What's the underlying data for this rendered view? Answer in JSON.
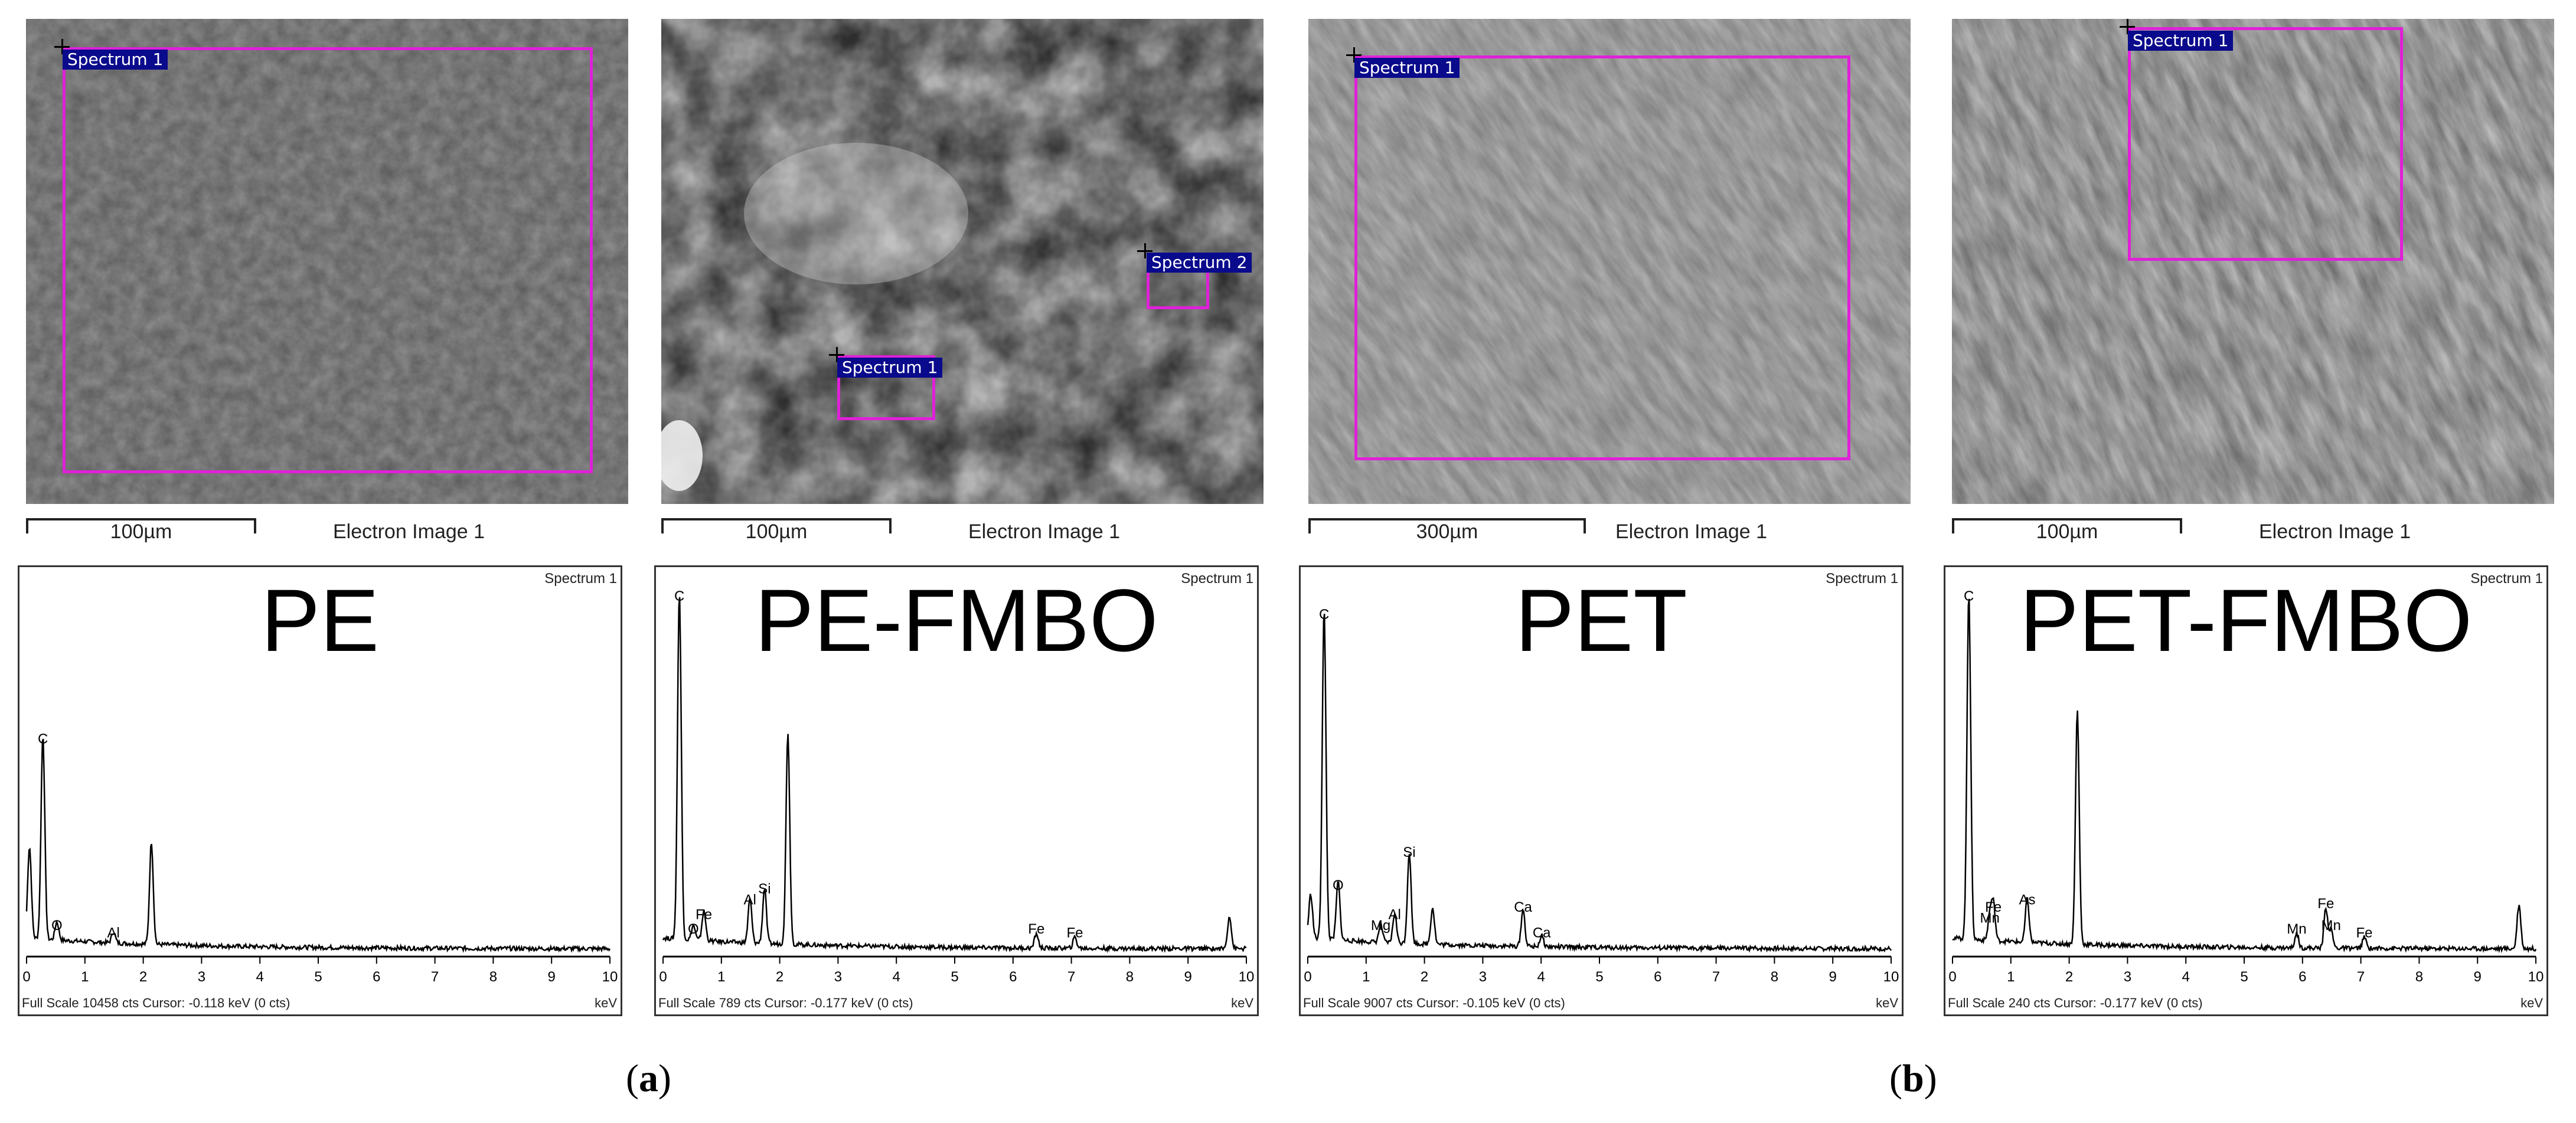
{
  "columns": [
    {
      "id": "pe",
      "spectrum_boxes": [
        {
          "label": "Spectrum 1"
        }
      ],
      "scale_label": "100µm",
      "image_label": "Electron Image 1",
      "spectrum_title": "PE",
      "spectrum_corner": "Spectrum 1",
      "footer": "Full Scale 10458 cts  Cursor: -0.118 keV (0 cts)",
      "unit": "keV",
      "peaks": [
        {
          "element": "C",
          "kev": 0.28,
          "height": 0.56
        },
        {
          "element": "O",
          "kev": 0.52,
          "height": 0.05
        },
        {
          "element": "Al",
          "kev": 1.49,
          "height": 0.03
        },
        {
          "element": "",
          "kev": 2.14,
          "height": 0.28
        },
        {
          "element": "",
          "kev": 0.05,
          "height": 0.25
        }
      ]
    },
    {
      "id": "pe-fmbo",
      "spectrum_boxes": [
        {
          "label": "Spectrum 2"
        },
        {
          "label": "Spectrum 1"
        }
      ],
      "scale_label": "100µm",
      "image_label": "Electron Image 1",
      "spectrum_title": "PE-FMBO",
      "spectrum_corner": "Spectrum 1",
      "footer": "Full Scale 789 cts  Cursor: -0.177 keV (0 cts)",
      "unit": "keV",
      "peaks": [
        {
          "element": "C",
          "kev": 0.28,
          "height": 0.95
        },
        {
          "element": "O",
          "kev": 0.52,
          "height": 0.04
        },
        {
          "element": "Fe",
          "kev": 0.7,
          "height": 0.08
        },
        {
          "element": "Al",
          "kev": 1.49,
          "height": 0.12
        },
        {
          "element": "Si",
          "kev": 1.74,
          "height": 0.15
        },
        {
          "element": "",
          "kev": 2.14,
          "height": 0.58
        },
        {
          "element": "Fe",
          "kev": 6.4,
          "height": 0.04
        },
        {
          "element": "Fe",
          "kev": 7.06,
          "height": 0.03
        },
        {
          "element": "",
          "kev": 9.71,
          "height": 0.09
        }
      ]
    },
    {
      "id": "pet",
      "spectrum_boxes": [
        {
          "label": "Spectrum 1"
        }
      ],
      "scale_label": "300µm",
      "image_label": "Electron Image 1",
      "spectrum_title": "PET",
      "spectrum_corner": "Spectrum 1",
      "footer": "Full Scale 9007 cts  Cursor: -0.105 keV (0 cts)",
      "unit": "keV",
      "peaks": [
        {
          "element": "C",
          "kev": 0.28,
          "height": 0.9
        },
        {
          "element": "O",
          "kev": 0.52,
          "height": 0.16
        },
        {
          "element": "Mg",
          "kev": 1.25,
          "height": 0.05
        },
        {
          "element": "Al",
          "kev": 1.49,
          "height": 0.08
        },
        {
          "element": "Si",
          "kev": 1.74,
          "height": 0.25
        },
        {
          "element": "",
          "kev": 2.14,
          "height": 0.1
        },
        {
          "element": "Ca",
          "kev": 3.69,
          "height": 0.1
        },
        {
          "element": "Ca",
          "kev": 4.01,
          "height": 0.03
        },
        {
          "element": "",
          "kev": 0.05,
          "height": 0.12
        }
      ]
    },
    {
      "id": "pet-fmbo",
      "spectrum_boxes": [
        {
          "label": "Spectrum 1"
        }
      ],
      "scale_label": "100µm",
      "image_label": "Electron Image 1",
      "spectrum_title": "PET-FMBO",
      "spectrum_corner": "Spectrum 1",
      "footer": "Full Scale 240 cts  Cursor: -0.177 keV (0 cts)",
      "unit": "keV",
      "peaks": [
        {
          "element": "C",
          "kev": 0.28,
          "height": 0.95
        },
        {
          "element": "Mn",
          "kev": 0.64,
          "height": 0.07
        },
        {
          "element": "Fe",
          "kev": 0.7,
          "height": 0.1
        },
        {
          "element": "As",
          "kev": 1.28,
          "height": 0.12
        },
        {
          "element": "",
          "kev": 2.14,
          "height": 0.64
        },
        {
          "element": "Mn",
          "kev": 5.9,
          "height": 0.04
        },
        {
          "element": "Mn",
          "kev": 6.49,
          "height": 0.05
        },
        {
          "element": "Fe",
          "kev": 6.4,
          "height": 0.11
        },
        {
          "element": "Fe",
          "kev": 7.06,
          "height": 0.03
        },
        {
          "element": "",
          "kev": 9.71,
          "height": 0.12
        }
      ]
    }
  ],
  "axis_ticks": [
    "0",
    "1",
    "2",
    "3",
    "4",
    "5",
    "6",
    "7",
    "8",
    "9",
    "10"
  ],
  "panel_labels": {
    "a": "a",
    "b": "b"
  }
}
